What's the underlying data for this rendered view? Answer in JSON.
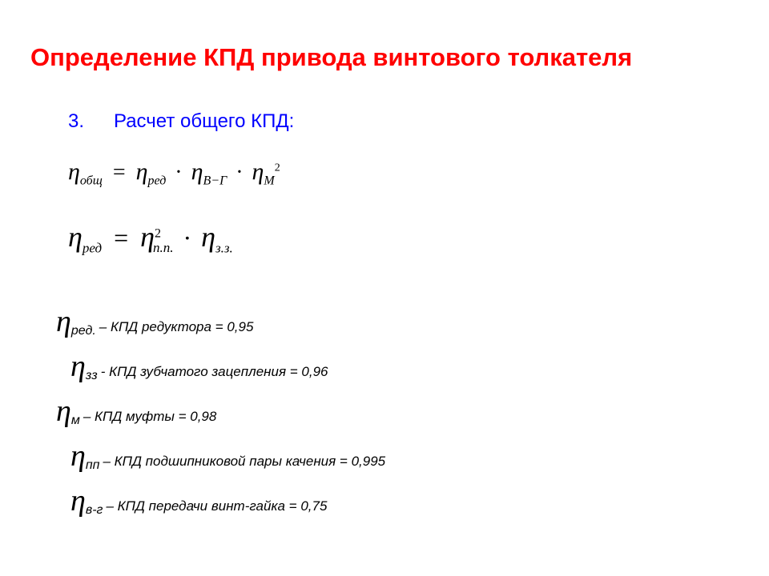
{
  "title": "Определение КПД привода винтового толкателя",
  "section": {
    "number": "3.",
    "title": "Расчет общего КПД:"
  },
  "formula1": {
    "lhs_sub": "общ",
    "rhs1_sub": "ред",
    "rhs2_sub": "В−Г",
    "rhs3_sub": "М",
    "rhs3_sup": "2"
  },
  "formula2": {
    "lhs_sub": "ред",
    "rhs1_sub": "п.п.",
    "rhs1_sup": "2",
    "rhs2_sub": "з.з."
  },
  "defs": [
    {
      "sub": "ред.",
      "text": " – КПД редуктора = 0,95",
      "indent": "0"
    },
    {
      "sub": "зз",
      "text": "  - КПД зубчатого зацепления = 0,96",
      "indent": "1"
    },
    {
      "sub": "м",
      "text": " – КПД муфты = 0,98",
      "indent": "0"
    },
    {
      "sub": "пп",
      "text": " – КПД подшипниковой пары качения = 0,995",
      "indent": "1"
    },
    {
      "sub": "в-г",
      "text": " – КПД передачи винт-гайка = 0,75",
      "indent": "1"
    }
  ],
  "colors": {
    "title": "#ff0000",
    "section": "#0000ff",
    "text": "#000000",
    "background": "#ffffff"
  }
}
